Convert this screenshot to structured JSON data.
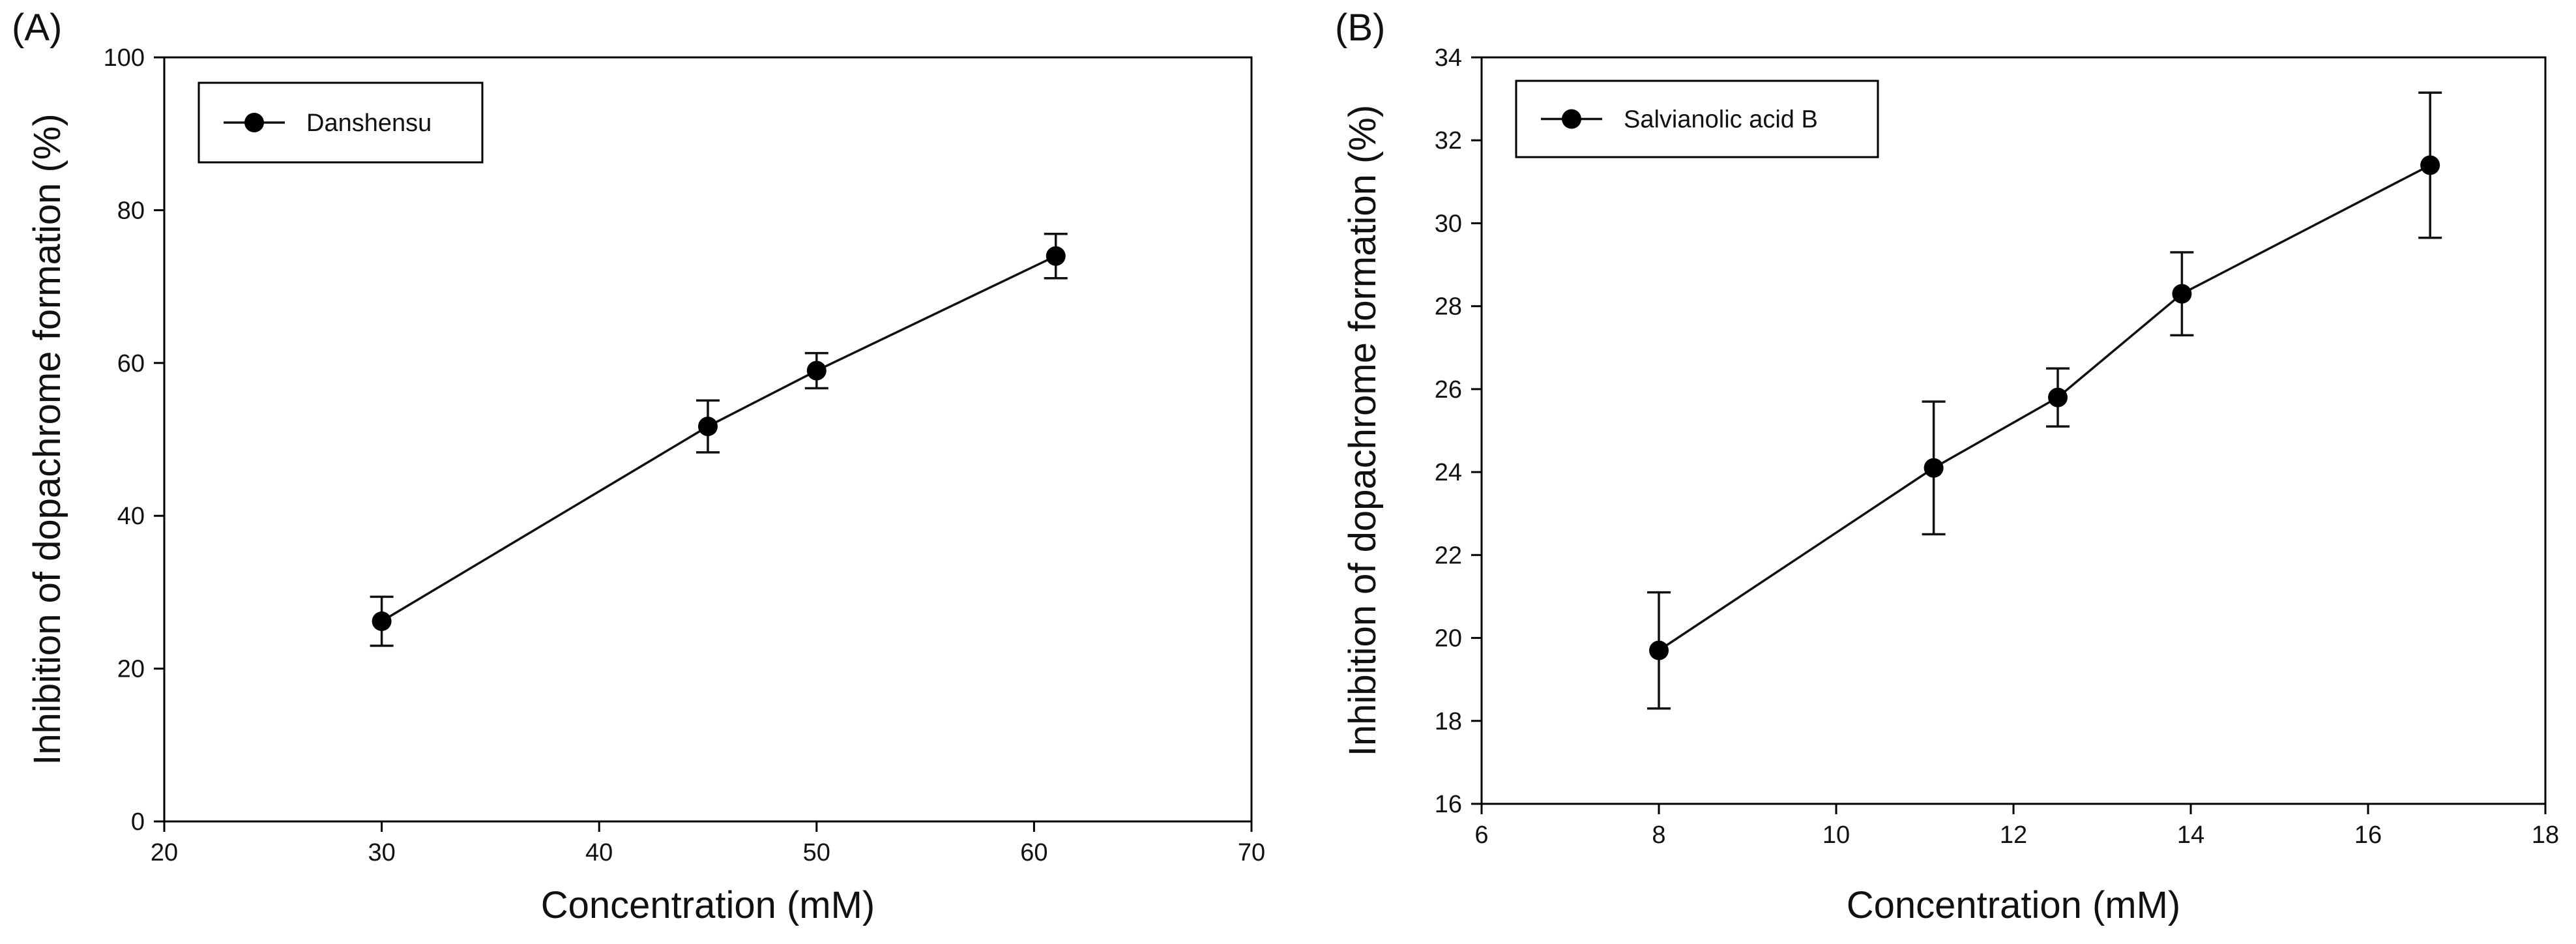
{
  "chart_data": [
    {
      "type": "line",
      "panel_label": "(A)",
      "x": [
        30,
        45,
        50,
        61
      ],
      "series": [
        {
          "name": "Danshensu",
          "values": [
            26.2,
            51.7,
            59.0,
            74.0
          ],
          "err": [
            3.2,
            3.4,
            2.3,
            2.9
          ]
        }
      ],
      "title": "",
      "xlabel": "Concentration (mM)",
      "ylabel": "Inhibition of dopachrome formation (%)",
      "xlim": [
        20,
        70
      ],
      "ylim": [
        0,
        100
      ],
      "xticks": [
        20,
        30,
        40,
        50,
        60,
        70
      ],
      "yticks": [
        0,
        20,
        40,
        60,
        80,
        100
      ],
      "xtick_labels": [
        "20",
        "30",
        "40",
        "50",
        "60",
        "70"
      ],
      "ytick_labels": [
        "0",
        "20",
        "40",
        "60",
        "80",
        "100"
      ],
      "grid": false,
      "legend_position": "top-left"
    },
    {
      "type": "line",
      "panel_label": "(B)",
      "x": [
        8,
        11.1,
        12.5,
        13.9,
        16.7
      ],
      "series": [
        {
          "name": "Salvianolic acid B",
          "values": [
            19.7,
            24.1,
            25.8,
            28.3,
            31.4
          ],
          "err": [
            1.4,
            1.6,
            0.7,
            1.0,
            1.75
          ]
        }
      ],
      "title": "",
      "xlabel": "Concentration (mM)",
      "ylabel": "Inhibition of dopachrome formation (%)",
      "xlim": [
        6,
        18
      ],
      "ylim": [
        16,
        34
      ],
      "xticks": [
        6,
        8,
        10,
        12,
        14,
        16,
        18
      ],
      "yticks": [
        16,
        18,
        20,
        22,
        24,
        26,
        28,
        30,
        32,
        34
      ],
      "xtick_labels": [
        "6",
        "8",
        "10",
        "12",
        "14",
        "16",
        "18"
      ],
      "ytick_labels": [
        "16",
        "18",
        "20",
        "22",
        "24",
        "26",
        "28",
        "30",
        "32",
        "34"
      ],
      "grid": false,
      "legend_position": "top-left"
    }
  ]
}
